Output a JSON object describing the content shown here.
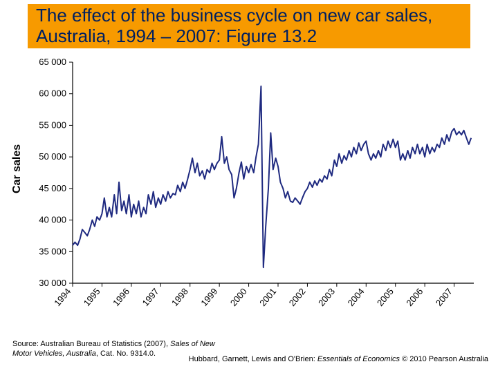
{
  "title": "The effect of the business cycle on new car sales, Australia, 1994 – 2007: Figure 13.2",
  "title_bg": "#f79a00",
  "title_color": "#002060",
  "chart": {
    "type": "line",
    "ylabel": "Car sales",
    "ylabel_fontsize": 16,
    "ylim": [
      30000,
      65000
    ],
    "ytick_step": 5000,
    "ytick_labels": [
      "30 000",
      "35 000",
      "40 000",
      "45 000",
      "50 000",
      "55 000",
      "60 000",
      "65 000"
    ],
    "xlim": [
      1994,
      2007.67
    ],
    "xtick_years": [
      1994,
      1995,
      1996,
      1997,
      1998,
      1999,
      2000,
      2001,
      2002,
      2003,
      2004,
      2005,
      2006,
      2007
    ],
    "series_color": "#1f2a80",
    "series_width": 2,
    "axis_color": "#000000",
    "background": "#ffffff",
    "values": [
      [
        1994.0,
        36000
      ],
      [
        1994.08,
        36500
      ],
      [
        1994.17,
        36000
      ],
      [
        1994.25,
        37000
      ],
      [
        1994.33,
        38500
      ],
      [
        1994.42,
        38000
      ],
      [
        1994.5,
        37500
      ],
      [
        1994.58,
        38500
      ],
      [
        1994.67,
        40000
      ],
      [
        1994.75,
        39000
      ],
      [
        1994.83,
        40500
      ],
      [
        1994.92,
        40000
      ],
      [
        1995.0,
        41000
      ],
      [
        1995.08,
        43500
      ],
      [
        1995.17,
        40500
      ],
      [
        1995.25,
        42000
      ],
      [
        1995.33,
        40500
      ],
      [
        1995.42,
        44000
      ],
      [
        1995.5,
        41000
      ],
      [
        1995.58,
        46000
      ],
      [
        1995.67,
        41500
      ],
      [
        1995.75,
        43000
      ],
      [
        1995.83,
        41000
      ],
      [
        1995.92,
        44000
      ],
      [
        1996.0,
        40500
      ],
      [
        1996.08,
        42500
      ],
      [
        1996.17,
        41000
      ],
      [
        1996.25,
        43000
      ],
      [
        1996.33,
        40500
      ],
      [
        1996.42,
        42000
      ],
      [
        1996.5,
        41000
      ],
      [
        1996.58,
        44000
      ],
      [
        1996.67,
        42500
      ],
      [
        1996.75,
        44500
      ],
      [
        1996.83,
        42000
      ],
      [
        1996.92,
        43500
      ],
      [
        1997.0,
        42500
      ],
      [
        1997.08,
        44000
      ],
      [
        1997.17,
        43000
      ],
      [
        1997.25,
        44500
      ],
      [
        1997.33,
        43500
      ],
      [
        1997.42,
        44200
      ],
      [
        1997.5,
        44000
      ],
      [
        1997.58,
        45500
      ],
      [
        1997.67,
        44500
      ],
      [
        1997.75,
        46000
      ],
      [
        1997.83,
        45000
      ],
      [
        1997.92,
        46500
      ],
      [
        1998.0,
        48000
      ],
      [
        1998.08,
        49800
      ],
      [
        1998.17,
        47500
      ],
      [
        1998.25,
        49000
      ],
      [
        1998.33,
        47000
      ],
      [
        1998.42,
        47800
      ],
      [
        1998.5,
        46500
      ],
      [
        1998.58,
        48000
      ],
      [
        1998.67,
        47500
      ],
      [
        1998.75,
        49000
      ],
      [
        1998.83,
        48000
      ],
      [
        1998.92,
        49000
      ],
      [
        1999.0,
        49500
      ],
      [
        1999.08,
        53200
      ],
      [
        1999.17,
        49000
      ],
      [
        1999.25,
        50000
      ],
      [
        1999.33,
        48000
      ],
      [
        1999.42,
        47200
      ],
      [
        1999.5,
        43500
      ],
      [
        1999.58,
        45000
      ],
      [
        1999.67,
        47500
      ],
      [
        1999.75,
        49200
      ],
      [
        1999.83,
        46500
      ],
      [
        1999.92,
        48500
      ],
      [
        2000.0,
        47500
      ],
      [
        2000.08,
        48800
      ],
      [
        2000.17,
        47500
      ],
      [
        2000.25,
        50000
      ],
      [
        2000.33,
        52000
      ],
      [
        2000.42,
        61200
      ],
      [
        2000.5,
        32500
      ],
      [
        2000.58,
        39000
      ],
      [
        2000.67,
        45000
      ],
      [
        2000.75,
        53800
      ],
      [
        2000.83,
        48000
      ],
      [
        2000.92,
        49800
      ],
      [
        2001.0,
        48500
      ],
      [
        2001.08,
        46000
      ],
      [
        2001.17,
        45000
      ],
      [
        2001.25,
        43500
      ],
      [
        2001.33,
        44500
      ],
      [
        2001.42,
        43000
      ],
      [
        2001.5,
        42800
      ],
      [
        2001.58,
        43500
      ],
      [
        2001.67,
        43000
      ],
      [
        2001.75,
        42500
      ],
      [
        2001.83,
        43500
      ],
      [
        2001.92,
        44500
      ],
      [
        2002.0,
        45000
      ],
      [
        2002.08,
        46000
      ],
      [
        2002.17,
        45200
      ],
      [
        2002.25,
        46200
      ],
      [
        2002.33,
        45500
      ],
      [
        2002.42,
        46500
      ],
      [
        2002.5,
        46000
      ],
      [
        2002.58,
        47000
      ],
      [
        2002.67,
        46500
      ],
      [
        2002.75,
        48000
      ],
      [
        2002.83,
        47000
      ],
      [
        2002.92,
        49500
      ],
      [
        2003.0,
        48500
      ],
      [
        2003.08,
        50500
      ],
      [
        2003.17,
        49000
      ],
      [
        2003.25,
        50200
      ],
      [
        2003.33,
        49500
      ],
      [
        2003.42,
        51000
      ],
      [
        2003.5,
        50000
      ],
      [
        2003.58,
        51500
      ],
      [
        2003.67,
        50500
      ],
      [
        2003.75,
        52200
      ],
      [
        2003.83,
        51000
      ],
      [
        2003.92,
        52000
      ],
      [
        2004.0,
        52500
      ],
      [
        2004.08,
        50500
      ],
      [
        2004.17,
        49500
      ],
      [
        2004.25,
        50500
      ],
      [
        2004.33,
        49800
      ],
      [
        2004.42,
        51000
      ],
      [
        2004.5,
        50000
      ],
      [
        2004.58,
        52000
      ],
      [
        2004.67,
        51000
      ],
      [
        2004.75,
        52500
      ],
      [
        2004.83,
        51500
      ],
      [
        2004.92,
        52800
      ],
      [
        2005.0,
        51500
      ],
      [
        2005.08,
        52500
      ],
      [
        2005.17,
        49500
      ],
      [
        2005.25,
        50500
      ],
      [
        2005.33,
        49500
      ],
      [
        2005.42,
        51000
      ],
      [
        2005.5,
        49800
      ],
      [
        2005.58,
        51500
      ],
      [
        2005.67,
        50500
      ],
      [
        2005.75,
        52000
      ],
      [
        2005.83,
        50500
      ],
      [
        2005.92,
        51500
      ],
      [
        2006.0,
        50000
      ],
      [
        2006.08,
        52000
      ],
      [
        2006.17,
        50500
      ],
      [
        2006.25,
        51500
      ],
      [
        2006.33,
        50800
      ],
      [
        2006.42,
        52000
      ],
      [
        2006.5,
        51500
      ],
      [
        2006.58,
        53000
      ],
      [
        2006.67,
        52000
      ],
      [
        2006.75,
        53500
      ],
      [
        2006.83,
        52500
      ],
      [
        2006.92,
        54000
      ],
      [
        2007.0,
        54500
      ],
      [
        2007.08,
        53500
      ],
      [
        2007.17,
        54000
      ],
      [
        2007.25,
        53500
      ],
      [
        2007.33,
        54200
      ],
      [
        2007.42,
        53000
      ],
      [
        2007.5,
        52000
      ],
      [
        2007.58,
        53000
      ]
    ]
  },
  "footer_source_line1": "Source: Australian Bureau of Statistics (2007), ",
  "footer_source_italic": "Sales of New Motor Vehicles, Australia",
  "footer_source_line2": ", Cat. No. 9314.0.",
  "footer_right_prefix": "Hubbard, Garnett, Lewis and O'Brien: ",
  "footer_right_italic": "Essentials of Economics",
  "footer_right_suffix": " © 2010 Pearson Australia"
}
